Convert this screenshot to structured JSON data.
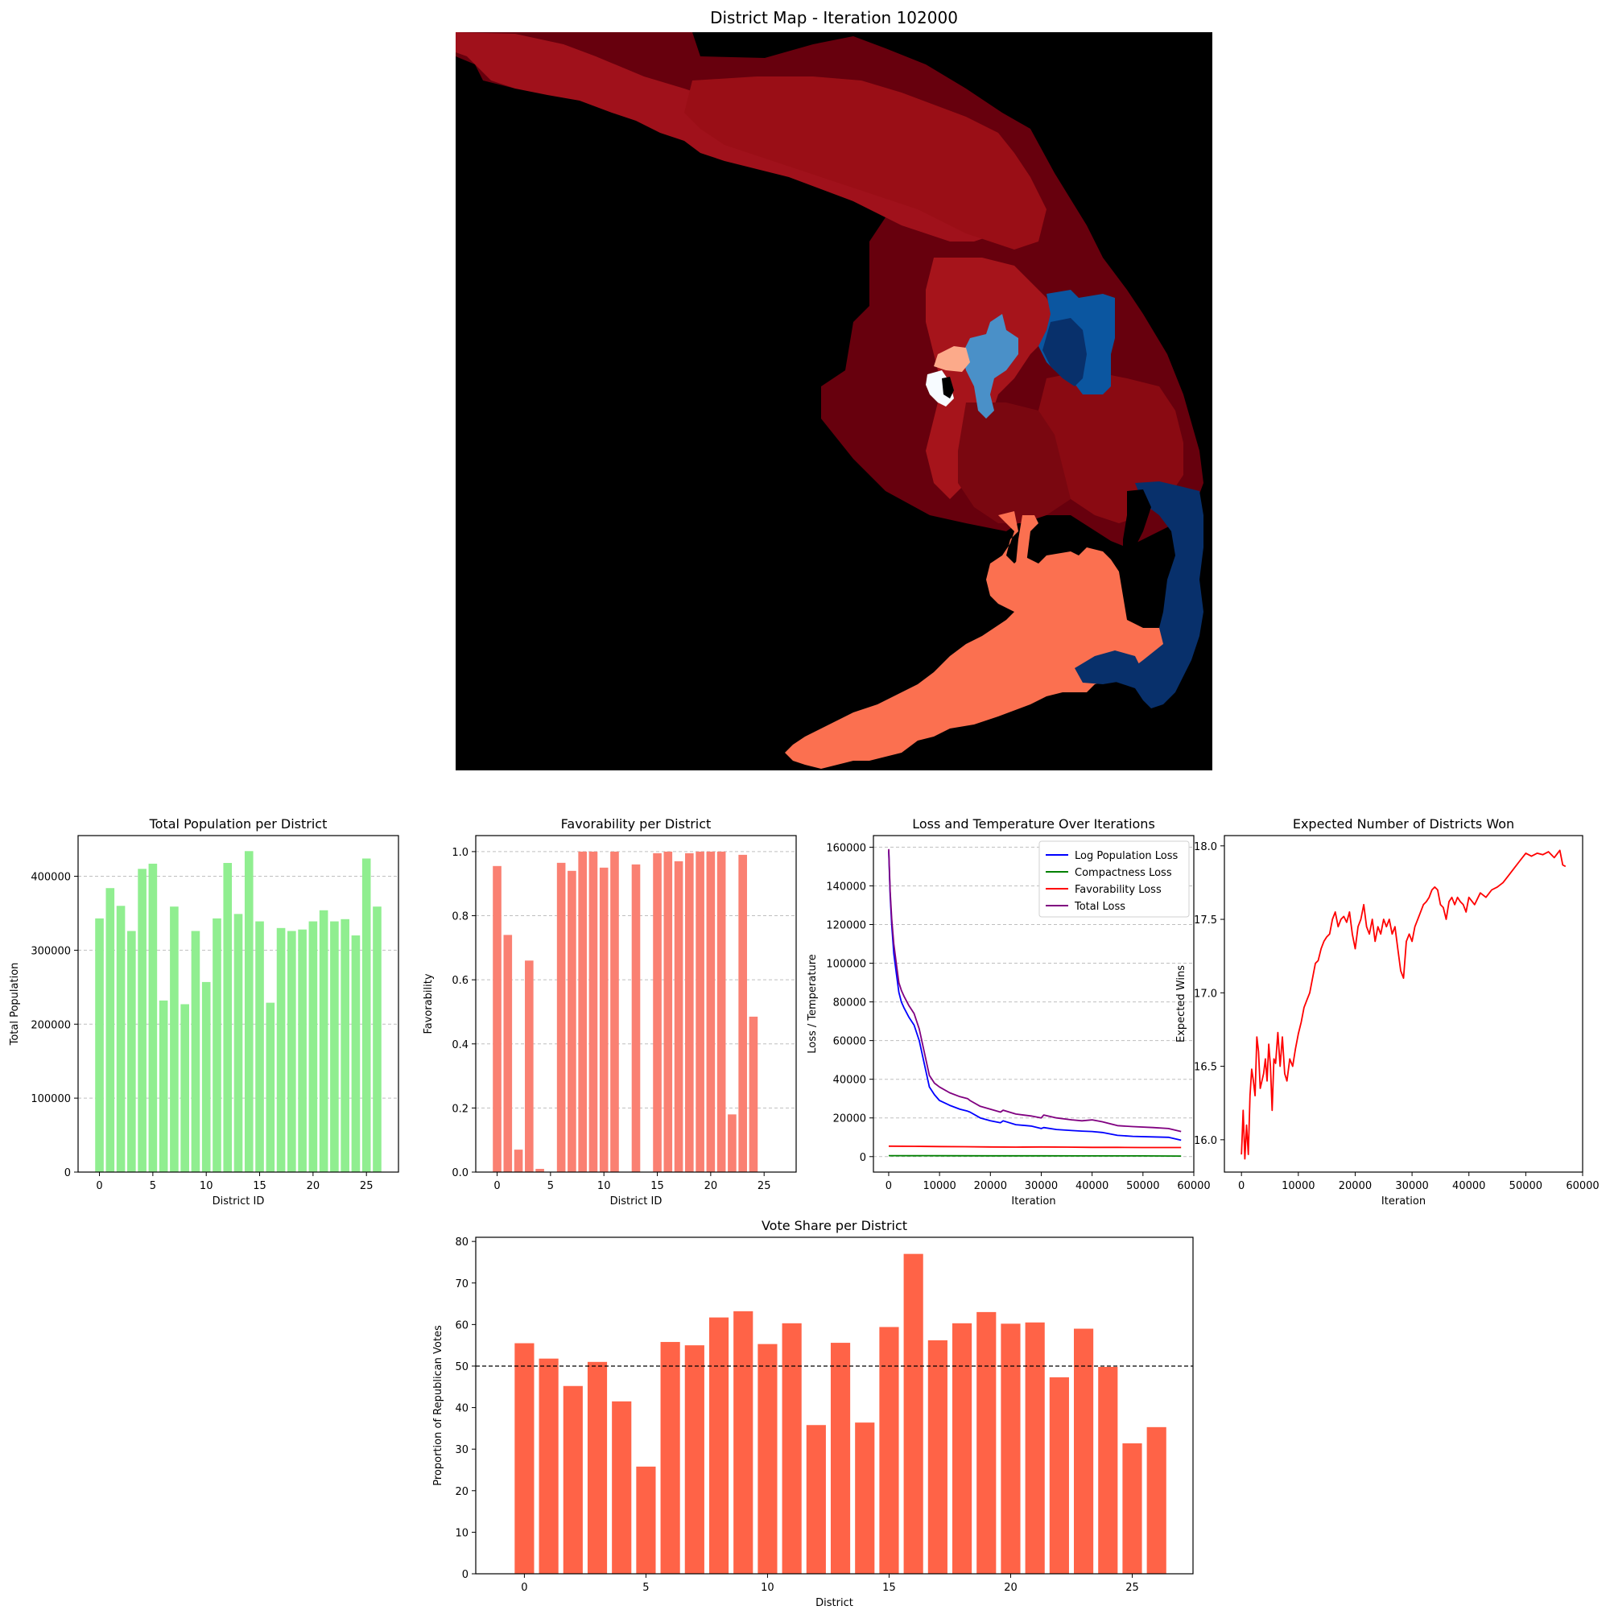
{
  "figure": {
    "map_title": "District Map - Iteration 102000",
    "map_description_hidden": null
  },
  "colors": {
    "population_bar": "#90ee90",
    "favorability_bar": "#fa8072",
    "vote_bar": "#ff6347",
    "log_pop": "#0000ff",
    "compactness": "#008000",
    "favorability_line": "#ff0000",
    "total_loss": "#800080",
    "expected_line": "#ff0000",
    "map_bg": "#000000",
    "dark_red": "#67000d",
    "red": "#9e0f18",
    "mid_red": "#a6141b",
    "salmon": "#fb7050",
    "light_salmon": "#fcaa8a",
    "light_blue": "#4a90c8",
    "blue": "#0b56a0",
    "navy": "#08306b",
    "white": "#f7fbff"
  },
  "chart_data": [
    {
      "id": "population",
      "type": "bar",
      "title": "Total Population per District",
      "xlabel": "District ID",
      "ylabel": "Total Population",
      "grid": "y",
      "categories": [
        0,
        1,
        2,
        3,
        4,
        5,
        6,
        7,
        8,
        9,
        10,
        11,
        12,
        13,
        14,
        15,
        16,
        17,
        18,
        19,
        20,
        21,
        22,
        23,
        24,
        25,
        26
      ],
      "values": [
        343000,
        384000,
        360000,
        326000,
        410000,
        417000,
        232000,
        359000,
        227000,
        326000,
        257000,
        343000,
        418000,
        349000,
        434000,
        339000,
        229000,
        330000,
        326000,
        328000,
        339000,
        354000,
        339000,
        342000,
        320000,
        424000,
        359000
      ],
      "xlim": [
        -2,
        28
      ],
      "ylim": [
        0,
        455000
      ],
      "xticks": [
        0,
        5,
        10,
        15,
        20,
        25
      ],
      "yticks": [
        0,
        100000,
        200000,
        300000,
        400000
      ]
    },
    {
      "id": "favorability",
      "type": "bar",
      "title": "Favorability per District",
      "xlabel": "District ID",
      "ylabel": "Favorability",
      "grid": "y",
      "categories": [
        0,
        1,
        2,
        3,
        4,
        5,
        6,
        7,
        8,
        9,
        10,
        11,
        12,
        13,
        14,
        15,
        16,
        17,
        18,
        19,
        20,
        21,
        22,
        23,
        24,
        25,
        26
      ],
      "values": [
        0.955,
        0.74,
        0.07,
        0.66,
        0.01,
        0.0,
        0.965,
        0.94,
        1.0,
        1.0,
        0.95,
        1.0,
        0.0,
        0.96,
        0.0,
        0.995,
        1.0,
        0.97,
        0.995,
        1.0,
        1.0,
        1.0,
        0.18,
        0.99,
        0.485,
        0.0,
        0.0
      ],
      "xlim": [
        -2,
        28
      ],
      "ylim": [
        0,
        1.05
      ],
      "xticks": [
        0,
        5,
        10,
        15,
        20,
        25
      ],
      "yticks": [
        0.0,
        0.2,
        0.4,
        0.6,
        0.8,
        1.0
      ]
    },
    {
      "id": "loss",
      "type": "line",
      "title": "Loss and Temperature Over Iterations",
      "xlabel": "Iteration",
      "ylabel": "Loss / Temperature",
      "grid": "y",
      "xlim": [
        -3000,
        60000
      ],
      "ylim": [
        -8000,
        166000
      ],
      "xticks": [
        0,
        10000,
        20000,
        30000,
        40000,
        50000,
        60000
      ],
      "yticks": [
        0,
        20000,
        40000,
        60000,
        80000,
        100000,
        120000,
        140000,
        160000
      ],
      "legend_position": "top-right",
      "series": [
        {
          "name": "Log Population Loss",
          "color_key": "log_pop",
          "x": [
            0,
            300,
            600,
            1000,
            1500,
            2000,
            2500,
            3000,
            4000,
            5000,
            6000,
            7000,
            8000,
            9000,
            10000,
            12000,
            14000,
            15500,
            16000,
            18000,
            20000,
            22000,
            22500,
            25000,
            28000,
            30000,
            30500,
            33000,
            36000,
            38000,
            40000,
            42000,
            45000,
            48000,
            52000,
            55000,
            57500
          ],
          "y": [
            158000,
            135000,
            120000,
            105000,
            95000,
            85000,
            80000,
            77000,
            72000,
            68000,
            60000,
            48000,
            36000,
            32000,
            29000,
            26500,
            24500,
            23500,
            23000,
            20000,
            18500,
            17500,
            18500,
            16500,
            15800,
            14500,
            15000,
            14000,
            13500,
            13200,
            13000,
            12500,
            11000,
            10500,
            10200,
            10000,
            8500
          ]
        },
        {
          "name": "Compactness Loss",
          "color_key": "compactness",
          "x": [
            0,
            10000,
            20000,
            30000,
            40000,
            50000,
            57500
          ],
          "y": [
            500,
            450,
            400,
            400,
            380,
            350,
            300
          ]
        },
        {
          "name": "Favorability Loss",
          "color_key": "favorability_line",
          "x": [
            0,
            5000,
            10000,
            15000,
            20000,
            25000,
            30000,
            35000,
            40000,
            45000,
            50000,
            57500
          ],
          "y": [
            5400,
            5300,
            5200,
            5100,
            5000,
            4900,
            5000,
            4900,
            4800,
            4800,
            4700,
            4700
          ]
        },
        {
          "name": "Total Loss",
          "color_key": "total_loss",
          "x": [
            0,
            300,
            600,
            1000,
            1500,
            2000,
            2500,
            3000,
            4000,
            5000,
            6000,
            7000,
            8000,
            9000,
            10000,
            12000,
            14000,
            15500,
            16000,
            18000,
            20000,
            22000,
            22500,
            25000,
            28000,
            30000,
            30500,
            33000,
            36000,
            38000,
            40000,
            42000,
            45000,
            48000,
            52000,
            55000,
            57500
          ],
          "y": [
            159000,
            137000,
            123000,
            110000,
            100000,
            90000,
            86000,
            83000,
            78000,
            74000,
            66000,
            54000,
            42000,
            38000,
            36000,
            33000,
            31000,
            30000,
            29000,
            26000,
            24500,
            23000,
            24000,
            22000,
            21000,
            20000,
            21500,
            20000,
            19000,
            18500,
            19000,
            18000,
            16000,
            15500,
            15000,
            14500,
            13000
          ]
        }
      ]
    },
    {
      "id": "expected",
      "type": "line",
      "title": "Expected Number of Districts Won",
      "xlabel": "Iteration",
      "ylabel": "Expected Wins",
      "grid": "none",
      "xlim": [
        -3000,
        60000
      ],
      "ylim": [
        15.78,
        18.07
      ],
      "xticks": [
        0,
        10000,
        20000,
        30000,
        40000,
        50000,
        60000
      ],
      "yticks": [
        16.0,
        16.5,
        17.0,
        17.5,
        18.0
      ],
      "series": [
        {
          "name": "Expected Wins",
          "color_key": "expected_line",
          "x": [
            0,
            300,
            600,
            900,
            1200,
            1500,
            1800,
            2100,
            2400,
            2700,
            3000,
            3300,
            3600,
            3900,
            4200,
            4500,
            4800,
            5100,
            5400,
            5700,
            6000,
            6400,
            6800,
            7200,
            7600,
            8000,
            8500,
            9000,
            9500,
            10000,
            10500,
            11000,
            11500,
            12000,
            12500,
            13000,
            13500,
            14000,
            14500,
            15000,
            15500,
            16000,
            16500,
            17000,
            17500,
            18000,
            18500,
            19000,
            19500,
            20000,
            20500,
            21000,
            21500,
            22000,
            22500,
            23000,
            23500,
            24000,
            24500,
            25000,
            25500,
            26000,
            26500,
            27000,
            27500,
            28000,
            28500,
            29000,
            29500,
            30000,
            30500,
            31000,
            31500,
            32000,
            32500,
            33000,
            33500,
            34000,
            34500,
            35000,
            35500,
            36000,
            36500,
            37000,
            37500,
            38000,
            38500,
            39000,
            39500,
            40000,
            41000,
            42000,
            43000,
            44000,
            45000,
            46000,
            47000,
            48000,
            49000,
            50000,
            51000,
            52000,
            53000,
            54000,
            55000,
            56000,
            56500,
            57000
          ],
          "y": [
            15.9,
            16.2,
            15.87,
            16.1,
            15.9,
            16.3,
            16.48,
            16.4,
            16.3,
            16.7,
            16.6,
            16.35,
            16.4,
            16.45,
            16.55,
            16.4,
            16.65,
            16.5,
            16.2,
            16.55,
            16.52,
            16.73,
            16.5,
            16.7,
            16.45,
            16.4,
            16.55,
            16.5,
            16.62,
            16.72,
            16.8,
            16.9,
            16.95,
            17.0,
            17.1,
            17.2,
            17.22,
            17.3,
            17.35,
            17.38,
            17.4,
            17.5,
            17.55,
            17.45,
            17.5,
            17.52,
            17.48,
            17.55,
            17.4,
            17.3,
            17.45,
            17.5,
            17.6,
            17.45,
            17.4,
            17.5,
            17.35,
            17.45,
            17.4,
            17.5,
            17.45,
            17.5,
            17.4,
            17.45,
            17.3,
            17.15,
            17.1,
            17.35,
            17.4,
            17.35,
            17.45,
            17.5,
            17.55,
            17.6,
            17.62,
            17.65,
            17.7,
            17.72,
            17.7,
            17.6,
            17.58,
            17.5,
            17.62,
            17.65,
            17.6,
            17.65,
            17.62,
            17.6,
            17.55,
            17.65,
            17.6,
            17.68,
            17.65,
            17.7,
            17.72,
            17.75,
            17.8,
            17.85,
            17.9,
            17.95,
            17.93,
            17.95,
            17.94,
            17.96,
            17.92,
            17.97,
            17.87,
            17.86
          ]
        }
      ]
    },
    {
      "id": "vote",
      "type": "bar",
      "title": "Vote Share per District",
      "xlabel": "District",
      "ylabel": "Proportion of Republican Votes",
      "grid": "none",
      "reference_line": 50,
      "categories": [
        0,
        1,
        2,
        3,
        4,
        5,
        6,
        7,
        8,
        9,
        10,
        11,
        12,
        13,
        14,
        15,
        16,
        17,
        18,
        19,
        20,
        21,
        22,
        23,
        24,
        25,
        26
      ],
      "values": [
        55.5,
        51.8,
        45.2,
        51.0,
        41.5,
        25.8,
        55.8,
        55.0,
        61.7,
        63.2,
        55.3,
        60.3,
        35.8,
        55.6,
        36.4,
        59.4,
        77.0,
        56.2,
        60.3,
        63.0,
        60.2,
        60.5,
        47.3,
        59.0,
        49.8,
        31.4,
        35.3
      ],
      "xlim": [
        -2,
        27.5
      ],
      "ylim": [
        0,
        81
      ],
      "xticks": [
        0,
        5,
        10,
        15,
        20,
        25
      ],
      "yticks": [
        0,
        10,
        20,
        30,
        40,
        50,
        60,
        70,
        80
      ]
    }
  ]
}
